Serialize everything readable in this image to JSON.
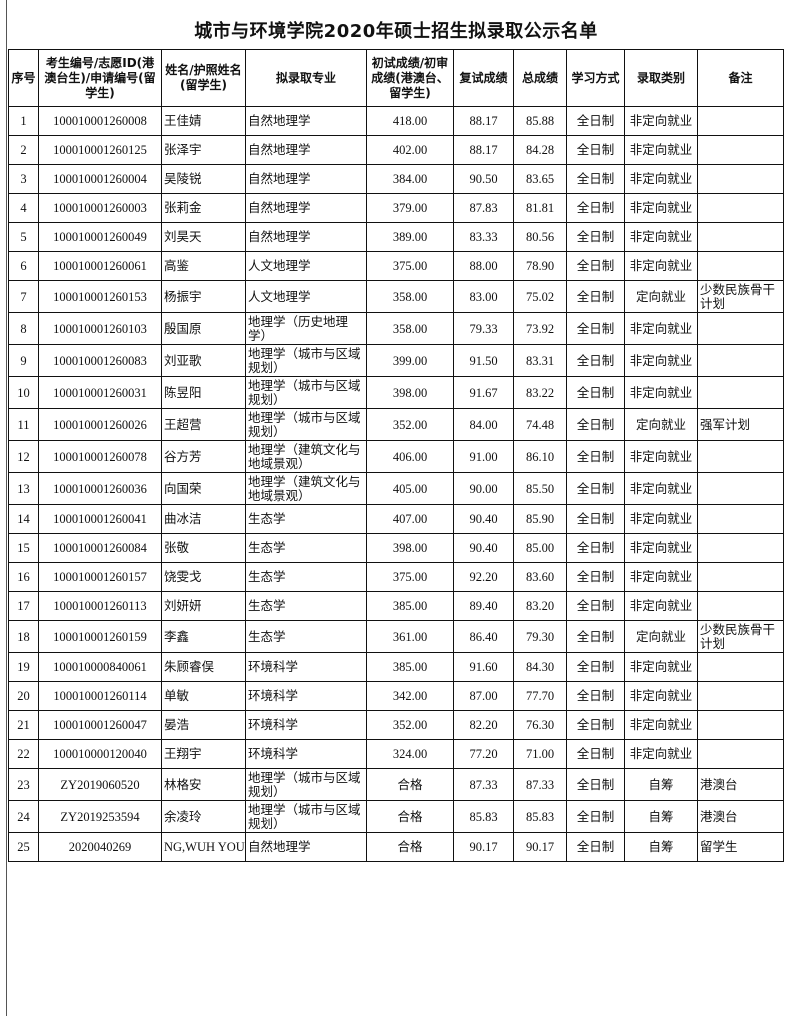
{
  "title": "城市与环境学院2020年硕士招生拟录取公示名单",
  "headers": [
    "序号",
    "考生编号/志愿ID(港澳台生)/申请编号(留学生)",
    "姓名/护照姓名(留学生)",
    "拟录取专业",
    "初试成绩/初审成绩(港澳台、留学生)",
    "复试成绩",
    "总成绩",
    "学习方式",
    "录取类别",
    "备注"
  ],
  "rows": [
    [
      "1",
      "100010001260008",
      "王佳婧",
      "自然地理学",
      "418.00",
      "88.17",
      "85.88",
      "全日制",
      "非定向就业",
      ""
    ],
    [
      "2",
      "100010001260125",
      "张泽宇",
      "自然地理学",
      "402.00",
      "88.17",
      "84.28",
      "全日制",
      "非定向就业",
      ""
    ],
    [
      "3",
      "100010001260004",
      "吴陵锐",
      "自然地理学",
      "384.00",
      "90.50",
      "83.65",
      "全日制",
      "非定向就业",
      ""
    ],
    [
      "4",
      "100010001260003",
      "张莉金",
      "自然地理学",
      "379.00",
      "87.83",
      "81.81",
      "全日制",
      "非定向就业",
      ""
    ],
    [
      "5",
      "100010001260049",
      "刘昊天",
      "自然地理学",
      "389.00",
      "83.33",
      "80.56",
      "全日制",
      "非定向就业",
      ""
    ],
    [
      "6",
      "100010001260061",
      "高鉴",
      "人文地理学",
      "375.00",
      "88.00",
      "78.90",
      "全日制",
      "非定向就业",
      ""
    ],
    [
      "7",
      "100010001260153",
      "杨振宇",
      "人文地理学",
      "358.00",
      "83.00",
      "75.02",
      "全日制",
      "定向就业",
      "少数民族骨干计划"
    ],
    [
      "8",
      "100010001260103",
      "殷国原",
      "地理学（历史地理学）",
      "358.00",
      "79.33",
      "73.92",
      "全日制",
      "非定向就业",
      ""
    ],
    [
      "9",
      "100010001260083",
      "刘亚歌",
      "地理学（城市与区域规划）",
      "399.00",
      "91.50",
      "83.31",
      "全日制",
      "非定向就业",
      ""
    ],
    [
      "10",
      "100010001260031",
      "陈昱阳",
      "地理学（城市与区域规划）",
      "398.00",
      "91.67",
      "83.22",
      "全日制",
      "非定向就业",
      ""
    ],
    [
      "11",
      "100010001260026",
      "王超营",
      "地理学（城市与区域规划）",
      "352.00",
      "84.00",
      "74.48",
      "全日制",
      "定向就业",
      "强军计划"
    ],
    [
      "12",
      "100010001260078",
      "谷方芳",
      "地理学（建筑文化与地域景观）",
      "406.00",
      "91.00",
      "86.10",
      "全日制",
      "非定向就业",
      ""
    ],
    [
      "13",
      "100010001260036",
      "向国荣",
      "地理学（建筑文化与地域景观）",
      "405.00",
      "90.00",
      "85.50",
      "全日制",
      "非定向就业",
      ""
    ],
    [
      "14",
      "100010001260041",
      "曲冰洁",
      "生态学",
      "407.00",
      "90.40",
      "85.90",
      "全日制",
      "非定向就业",
      ""
    ],
    [
      "15",
      "100010001260084",
      "张敬",
      "生态学",
      "398.00",
      "90.40",
      "85.00",
      "全日制",
      "非定向就业",
      ""
    ],
    [
      "16",
      "100010001260157",
      "饶雯戈",
      "生态学",
      "375.00",
      "92.20",
      "83.60",
      "全日制",
      "非定向就业",
      ""
    ],
    [
      "17",
      "100010001260113",
      "刘妍妍",
      "生态学",
      "385.00",
      "89.40",
      "83.20",
      "全日制",
      "非定向就业",
      ""
    ],
    [
      "18",
      "100010001260159",
      "李鑫",
      "生态学",
      "361.00",
      "86.40",
      "79.30",
      "全日制",
      "定向就业",
      "少数民族骨干计划"
    ],
    [
      "19",
      "100010000840061",
      "朱顾睿俣",
      "环境科学",
      "385.00",
      "91.60",
      "84.30",
      "全日制",
      "非定向就业",
      ""
    ],
    [
      "20",
      "100010001260114",
      "单敏",
      "环境科学",
      "342.00",
      "87.00",
      "77.70",
      "全日制",
      "非定向就业",
      ""
    ],
    [
      "21",
      "100010001260047",
      "晏浩",
      "环境科学",
      "352.00",
      "82.20",
      "76.30",
      "全日制",
      "非定向就业",
      ""
    ],
    [
      "22",
      "100010000120040",
      "王翔宇",
      "环境科学",
      "324.00",
      "77.20",
      "71.00",
      "全日制",
      "非定向就业",
      ""
    ],
    [
      "23",
      "ZY2019060520",
      "林格安",
      "地理学（城市与区域规划）",
      "合格",
      "87.33",
      "87.33",
      "全日制",
      "自筹",
      "港澳台"
    ],
    [
      "24",
      "ZY2019253594",
      "余凌玲",
      "地理学（城市与区域规划）",
      "合格",
      "85.83",
      "85.83",
      "全日制",
      "自筹",
      "港澳台"
    ],
    [
      "25",
      "2020040269",
      "NG,WUH YOU",
      "自然地理学",
      "合格",
      "90.17",
      "90.17",
      "全日制",
      "自筹",
      "留学生"
    ]
  ]
}
